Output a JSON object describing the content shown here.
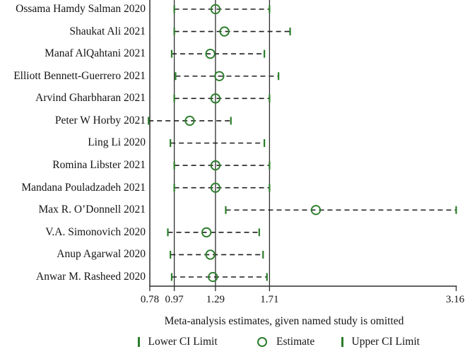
{
  "figure": {
    "caption": "Meta-analysis estimates, given named study is omitted",
    "legend": {
      "lower": "Lower CI Limit",
      "estimate": "Estimate",
      "upper": "Upper CI Limit"
    },
    "colors": {
      "marker_green": "#2b7e2b",
      "line_dark": "#2e2e2e",
      "dash_dark": "#1f1f1f",
      "text": "#141414"
    }
  },
  "chart_data": {
    "type": "forest",
    "title": "",
    "xlabel": "Meta-analysis estimates, given named study is omitted",
    "xlim": [
      0.78,
      3.16
    ],
    "x_ticks": [
      0.78,
      0.97,
      1.29,
      1.71,
      3.16
    ],
    "x_tick_labels": [
      "0.78",
      "0.97",
      "1.29",
      "1.71",
      "3.16"
    ],
    "reference_lines": [
      0.97,
      1.29,
      1.71
    ],
    "grid": false,
    "legend_position": "bottom",
    "studies": [
      {
        "label": "Ossama Hamdy Salman 2020",
        "lower": 0.97,
        "estimate": 1.29,
        "upper": 1.71
      },
      {
        "label": "Shaukat Ali 2021",
        "lower": 0.97,
        "estimate": 1.36,
        "upper": 1.87
      },
      {
        "label": "Manaf AlQahtani 2021",
        "lower": 0.95,
        "estimate": 1.25,
        "upper": 1.67
      },
      {
        "label": "Elliott Bennett-Guerrero 2021",
        "lower": 0.98,
        "estimate": 1.32,
        "upper": 1.78
      },
      {
        "label": "Arvind Gharbharan 2021",
        "lower": 0.97,
        "estimate": 1.29,
        "upper": 1.71
      },
      {
        "label": "Peter W Horby 2021",
        "lower": 0.77,
        "estimate": 1.09,
        "upper": 1.41
      },
      {
        "label": "Ling Li 2020",
        "lower": 0.94,
        "estimate": null,
        "upper": 1.67
      },
      {
        "label": "Romina Libster 2021",
        "lower": 0.97,
        "estimate": 1.29,
        "upper": 1.71
      },
      {
        "label": "Mandana Pouladzadeh 2021",
        "lower": 0.97,
        "estimate": 1.29,
        "upper": 1.71
      },
      {
        "label": "Max R. O’Donnell 2021",
        "lower": 1.37,
        "estimate": 2.07,
        "upper": 3.16
      },
      {
        "label": "V.A. Simonovich 2020",
        "lower": 0.92,
        "estimate": 1.22,
        "upper": 1.63
      },
      {
        "label": "Anup Agarwal 2020",
        "lower": 0.94,
        "estimate": 1.25,
        "upper": 1.66
      },
      {
        "label": "Anwar M. Rasheed 2020",
        "lower": 0.95,
        "estimate": 1.27,
        "upper": 1.69
      }
    ]
  }
}
